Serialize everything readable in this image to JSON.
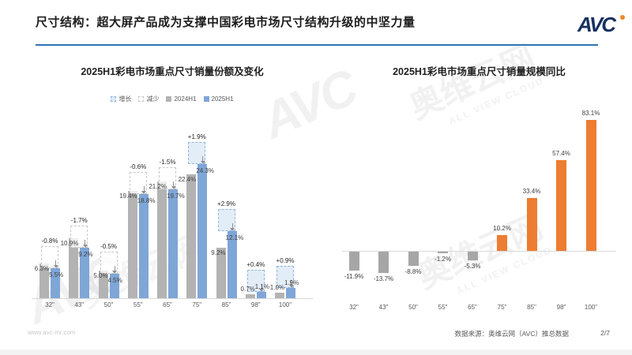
{
  "header": {
    "title": "尺寸结构：超大屏产品成为支撑中国彩电市场尺寸结构升级的中坚力量",
    "logo": {
      "av": "AV",
      "c": "C"
    }
  },
  "chart_data": [
    {
      "type": "bar",
      "title": "2025H1彩电市场重点尺寸销量份额及变化",
      "categories": [
        "32\"",
        "43\"",
        "50\"",
        "55\"",
        "65\"",
        "75\"",
        "85\"",
        "98\"",
        "100\""
      ],
      "series": [
        {
          "name": "2024H1",
          "values": [
            6.3,
            10.9,
            5.0,
            19.4,
            21.2,
            22.4,
            9.2,
            0.7,
            1.0
          ]
        },
        {
          "name": "2025H1",
          "values": [
            5.5,
            9.2,
            4.5,
            18.8,
            19.7,
            24.3,
            12.1,
            1.1,
            1.9
          ]
        }
      ],
      "changes": [
        -0.8,
        -1.7,
        -0.5,
        -0.6,
        -1.5,
        1.9,
        2.9,
        0.4,
        0.9
      ],
      "unit": "%",
      "ylim": [
        0,
        28
      ],
      "grid": false,
      "legend_position": "top",
      "legend": [
        {
          "label": "增长",
          "type": "increase"
        },
        {
          "label": "减少",
          "type": "decrease"
        },
        {
          "label": "2024H1",
          "type": "s2024"
        },
        {
          "label": "2025H1",
          "type": "s2025"
        }
      ]
    },
    {
      "type": "bar",
      "title": "2025H1彩电市场重点尺寸销量规模同比",
      "categories": [
        "32\"",
        "43\"",
        "50\"",
        "55\"",
        "65\"",
        "75\"",
        "85\"",
        "98\"",
        "100\""
      ],
      "values": [
        -11.9,
        -13.7,
        -8.8,
        -1.2,
        -5.3,
        10.2,
        33.4,
        57.4,
        83.1
      ],
      "unit": "%",
      "ylim": [
        -20,
        90
      ],
      "grid": false
    }
  ],
  "footer": {
    "website": "www.avc-mr.com",
    "source": "数据来源：奥维云网（AVC）推总数据",
    "page": "2/7"
  },
  "watermark": {
    "brand": "AVC",
    "name": "奥维云网",
    "slogan": "ALL VIEW CLOUD"
  },
  "colors": {
    "bar_2024": "#B3B3B3",
    "bar_2025": "#7EA6D7",
    "increase_fill": "#DEEAF6",
    "increase_border": "#8FB6E0",
    "decrease_fill": "#FDFDFD",
    "decrease_border": "#C8C8C8",
    "positive_bar": "#ED7D31",
    "negative_bar": "#A6A6A6",
    "header_line": "#2E74B5",
    "logo_navy": "#17305F",
    "logo_orange": "#F0882B"
  }
}
